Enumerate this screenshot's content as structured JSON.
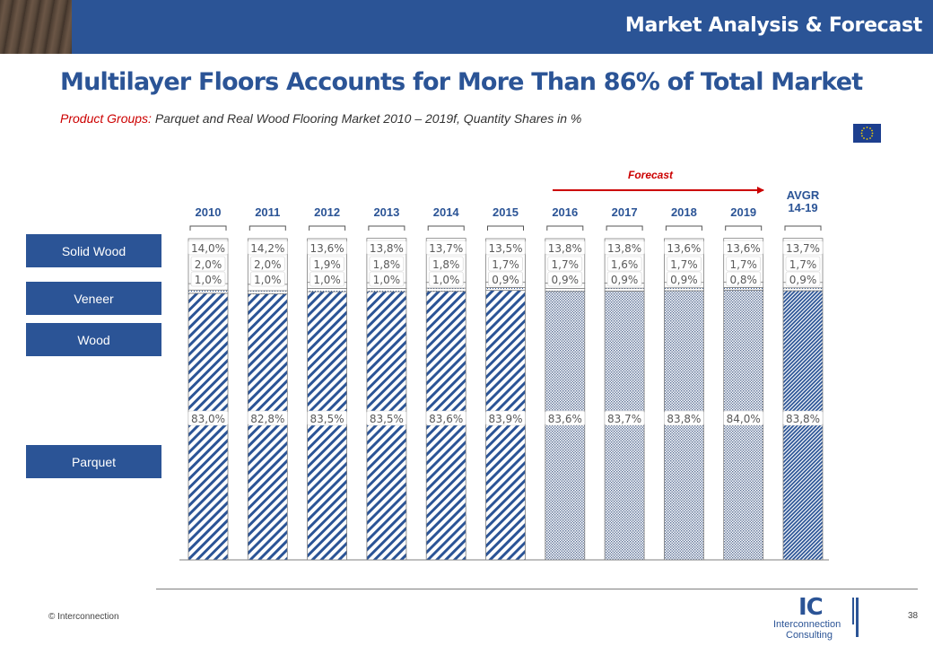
{
  "header": {
    "section_title": "Market Analysis & Forecast",
    "headline": "Multilayer Floors Accounts for More Than 86% of Total Market",
    "subtitle_lead": "Product Groups:",
    "subtitle_rest": " Parquet and Real Wood Flooring Market 2010 – 2019f, Quantity Shares in %"
  },
  "legend": {
    "solid_wood": "Solid Wood",
    "veneer": "Veneer",
    "wood": "Wood",
    "parquet": "Parquet"
  },
  "forecast_label": "Forecast",
  "footer": {
    "copyright": "© Interconnection",
    "page_number": "38",
    "logo_mark": "IC",
    "logo_line1": "Interconnection",
    "logo_line2": "Consulting"
  },
  "colors": {
    "brand_blue": "#2b5496",
    "forecast_red": "#cc0000",
    "bar_pattern_historic": "#2b5496",
    "bar_pattern_forecast": "#2b5496"
  },
  "chart_data": {
    "type": "bar",
    "stacked": true,
    "categories": [
      "2010",
      "2011",
      "2012",
      "2013",
      "2014",
      "2015",
      "2016",
      "2017",
      "2018",
      "2019",
      "AVGR 14-19"
    ],
    "forecast_from_category": "2016",
    "series": [
      {
        "name": "Parquet",
        "values": [
          83.0,
          82.8,
          83.5,
          83.5,
          83.6,
          83.9,
          83.6,
          83.7,
          83.8,
          84.0,
          83.8
        ],
        "labels": [
          "83,0%",
          "82,8%",
          "83,5%",
          "83,5%",
          "83,6%",
          "83,9%",
          "83,6%",
          "83,7%",
          "83,8%",
          "84,0%",
          "83,8%"
        ]
      },
      {
        "name": "Wood",
        "values": [
          1.0,
          1.0,
          1.0,
          1.0,
          1.0,
          0.9,
          0.9,
          0.9,
          0.9,
          0.8,
          0.9
        ],
        "labels": [
          "1,0%",
          "1,0%",
          "1,0%",
          "1,0%",
          "1,0%",
          "0,9%",
          "0,9%",
          "0,9%",
          "0,9%",
          "0,8%",
          "0,9%"
        ]
      },
      {
        "name": "Veneer",
        "values": [
          2.0,
          2.0,
          1.9,
          1.8,
          1.8,
          1.7,
          1.7,
          1.6,
          1.7,
          1.7,
          1.7
        ],
        "labels": [
          "2,0%",
          "2,0%",
          "1,9%",
          "1,8%",
          "1,8%",
          "1,7%",
          "1,7%",
          "1,6%",
          "1,7%",
          "1,7%",
          "1,7%"
        ]
      },
      {
        "name": "Solid Wood",
        "values": [
          14.0,
          14.2,
          13.6,
          13.8,
          13.7,
          13.5,
          13.8,
          13.8,
          13.6,
          13.6,
          13.7
        ],
        "labels": [
          "14,0%",
          "14,2%",
          "13,6%",
          "13,8%",
          "13,7%",
          "13,5%",
          "13,8%",
          "13,8%",
          "13,6%",
          "13,6%",
          "13,7%"
        ]
      }
    ],
    "ylim": [
      0,
      100
    ],
    "grid": false,
    "legend_placement": "left"
  }
}
